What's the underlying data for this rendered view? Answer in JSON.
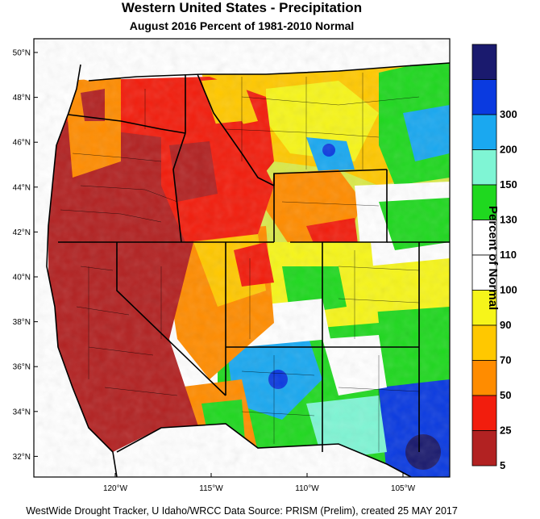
{
  "title": "Western United States - Precipitation",
  "subtitle": "August 2016  Percent of 1981-2010 Normal",
  "footer": "WestWide Drought Tracker, U Idaho/WRCC Data Source: PRISM (Prelim), created 25 MAY 2017",
  "legend": {
    "title": "Percent of Normal",
    "bins": [
      {
        "label": "",
        "color": "#1a1a6e"
      },
      {
        "label": "300",
        "color": "#0a3ae0"
      },
      {
        "label": "200",
        "color": "#1aa8f0"
      },
      {
        "label": "150",
        "color": "#7ff5d4"
      },
      {
        "label": "130",
        "color": "#1fd81f"
      },
      {
        "label": "110",
        "color": "#ffffff"
      },
      {
        "label": "100",
        "color": "#ffffff"
      },
      {
        "label": "90",
        "color": "#f6f51a"
      },
      {
        "label": "70",
        "color": "#ffc800"
      },
      {
        "label": "50",
        "color": "#ff8c00"
      },
      {
        "label": "25",
        "color": "#f21d0d"
      },
      {
        "label": "5",
        "color": "#b22222"
      }
    ]
  },
  "axes": {
    "lat_labels": [
      "50°N",
      "48°N",
      "46°N",
      "44°N",
      "42°N",
      "40°N",
      "38°N",
      "36°N",
      "34°N",
      "32°N"
    ],
    "lon_labels": [
      "120°W",
      "115°W",
      "110°W",
      "105°W"
    ]
  }
}
